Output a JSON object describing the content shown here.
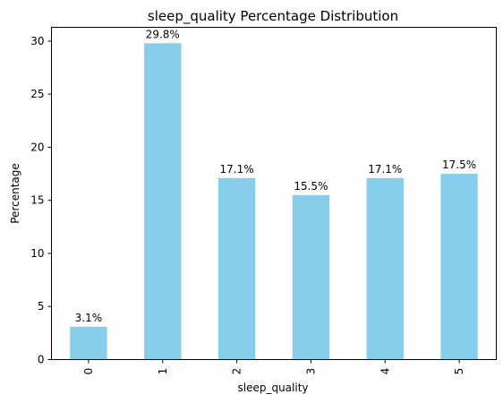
{
  "chart_data": {
    "type": "bar",
    "title": "sleep_quality Percentage Distribution",
    "xlabel": "sleep_quality",
    "ylabel": "Percentage",
    "categories": [
      "0",
      "1",
      "2",
      "3",
      "4",
      "5"
    ],
    "values": [
      3.1,
      29.8,
      17.1,
      15.5,
      17.1,
      17.5
    ],
    "data_labels": [
      "3.1%",
      "29.8%",
      "17.1%",
      "15.5%",
      "17.1%",
      "17.5%"
    ],
    "yticks": [
      0,
      5,
      10,
      15,
      20,
      25,
      30
    ],
    "ylim": [
      0,
      31.3
    ],
    "grid": false,
    "bar_color": "#87ceeb",
    "x_tick_rotation": "vertical"
  }
}
